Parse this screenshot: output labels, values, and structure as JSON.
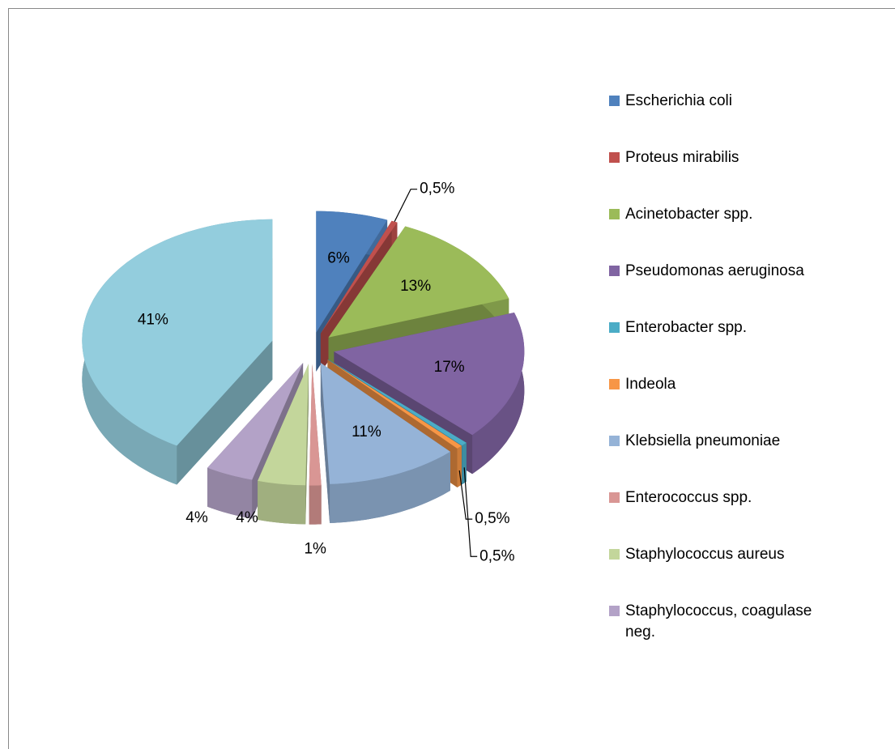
{
  "chart_data": {
    "type": "pie",
    "categories": [
      "Escherichia coli",
      "Proteus mirabilis",
      "Acinetobacter spp.",
      "Pseudomonas aeruginosa",
      "Enterobacter spp.",
      "Indeola",
      "Klebsiella pneumoniae",
      "Enterococcus spp.",
      "Staphylococcus aureus",
      "Staphylococcus, coagulase neg.",
      null
    ],
    "values": [
      6,
      0.5,
      13,
      17,
      0.5,
      0.5,
      11,
      1,
      4,
      4,
      41
    ],
    "value_labels": [
      "6%",
      "0,5%",
      "13%",
      "17%",
      "0,5%",
      "0,5%",
      "11%",
      "1%",
      "4%",
      "4%",
      "41%"
    ],
    "colors": [
      "#4f81bd",
      "#c0504d",
      "#9bbb59",
      "#8064a2",
      "#4bacc6",
      "#f79646",
      "#95b3d7",
      "#d99694",
      "#c3d69b",
      "#b3a2c7",
      "#93cddd"
    ],
    "legend": "right"
  }
}
